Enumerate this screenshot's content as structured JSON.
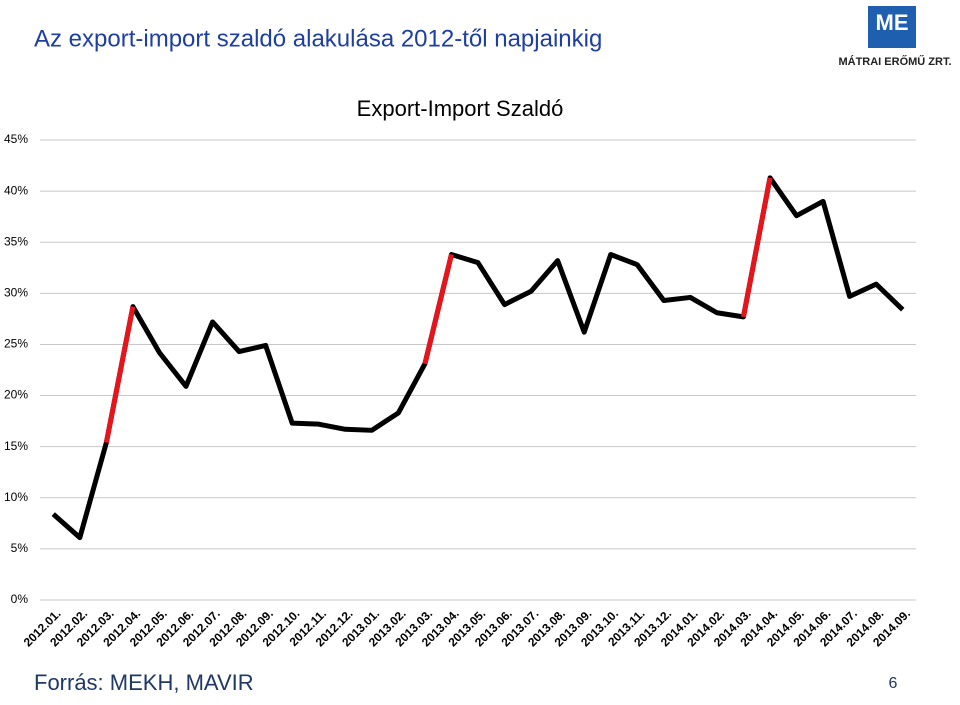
{
  "header": {
    "title": "Az export-import szaldó alakulása 2012-től napjainkig",
    "logo_mark": "ME",
    "logo_text": "MÁTRAI ERŐMŰ ZRT."
  },
  "chart_data": {
    "type": "line",
    "title": "Export-Import Szaldó",
    "categories": [
      "2012.01.",
      "2012.02.",
      "2012.03.",
      "2012.04.",
      "2012.05.",
      "2012.06.",
      "2012.07.",
      "2012.08.",
      "2012.09.",
      "2012.10.",
      "2012.11.",
      "2012.12.",
      "2013.01.",
      "2013.02.",
      "2013.03.",
      "2013.04.",
      "2013.05.",
      "2013.06.",
      "2013.07.",
      "2013.08.",
      "2013.09.",
      "2013.10.",
      "2013.11.",
      "2013.12.",
      "2014.01.",
      "2014.02.",
      "2014.03.",
      "2014.04.",
      "2014.05.",
      "2014.06.",
      "2014.07.",
      "2014.08.",
      "2014.09."
    ],
    "values": [
      8.4,
      6.1,
      15.4,
      28.7,
      24.2,
      20.9,
      27.2,
      24.3,
      24.9,
      17.3,
      17.2,
      16.7,
      16.6,
      18.3,
      23.1,
      33.8,
      33.0,
      28.9,
      30.2,
      33.2,
      26.2,
      33.8,
      32.8,
      29.3,
      29.6,
      28.1,
      27.7,
      41.3,
      37.6,
      39.0,
      29.7,
      30.9,
      28.4
    ],
    "color": "#000000",
    "highlight_color": "#e8141b",
    "highlight_ends": [
      3,
      15,
      27
    ],
    "ylim": [
      0,
      45
    ],
    "yticks": [
      {
        "value": 0,
        "label": "0%"
      },
      {
        "value": 5,
        "label": "5%"
      },
      {
        "value": 10,
        "label": "10%"
      },
      {
        "value": 15,
        "label": "15%"
      },
      {
        "value": 20,
        "label": "20%"
      },
      {
        "value": 25,
        "label": "25%"
      },
      {
        "value": 30,
        "label": "30%"
      },
      {
        "value": 35,
        "label": "35%"
      },
      {
        "value": 40,
        "label": "40%"
      },
      {
        "value": 45,
        "label": "45%"
      }
    ],
    "grid": true
  },
  "footer": {
    "source": "Forrás: MEKH, MAVIR",
    "page": "6"
  }
}
